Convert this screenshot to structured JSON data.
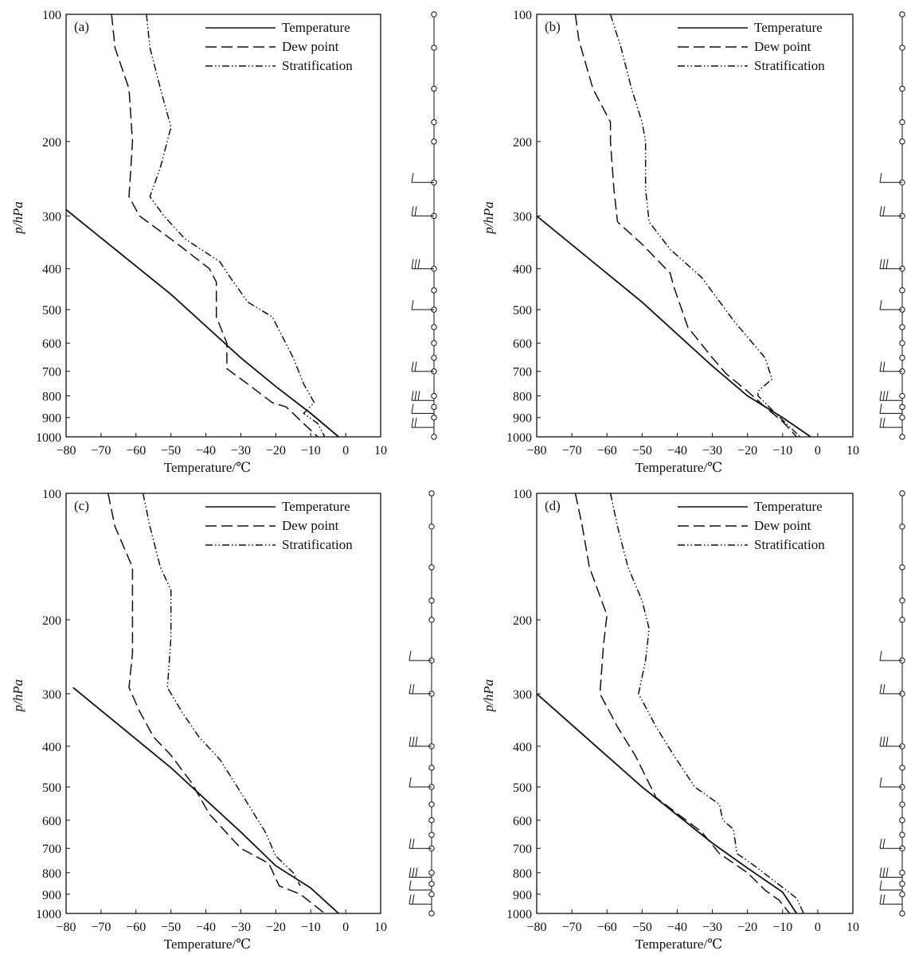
{
  "chart_data": [
    {
      "type": "line",
      "panel_label": "(a)",
      "xlabel": "Temperature/℃",
      "ylabel": "p/hPa",
      "xlim": [
        -80,
        10
      ],
      "ylim": [
        1000,
        100
      ],
      "y_scale": "log",
      "x_ticks": [
        "−80",
        "−70",
        "−60",
        "−50",
        "−40",
        "−30",
        "−20",
        "−10",
        "0",
        "10"
      ],
      "y_ticks": [
        "100",
        "200",
        "300",
        "400",
        "500",
        "600",
        "700",
        "800",
        "900",
        "1000"
      ],
      "legend_position": "top-right",
      "series": [
        {
          "name": "Temperature",
          "dash": "solid",
          "points": [
            [
              -80,
              290
            ],
            [
              -50,
              460
            ],
            [
              -30,
              650
            ],
            [
              -20,
              760
            ],
            [
              -10,
              880
            ],
            [
              -2,
              1000
            ]
          ]
        },
        {
          "name": "Dew point",
          "dash": "dashed",
          "points": [
            [
              -67,
              100
            ],
            [
              -66,
              120
            ],
            [
              -62,
              150
            ],
            [
              -61,
              200
            ],
            [
              -62,
              270
            ],
            [
              -59,
              300
            ],
            [
              -48,
              350
            ],
            [
              -39,
              400
            ],
            [
              -37,
              430
            ],
            [
              -37,
              520
            ],
            [
              -34,
              600
            ],
            [
              -34,
              690
            ],
            [
              -28,
              750
            ],
            [
              -21,
              830
            ],
            [
              -17,
              850
            ],
            [
              -12,
              930
            ],
            [
              -8,
              1000
            ]
          ]
        },
        {
          "name": "Stratification",
          "dash": "dash-dot-dot",
          "points": [
            [
              -57,
              100
            ],
            [
              -56,
              120
            ],
            [
              -53,
              150
            ],
            [
              -50,
              185
            ],
            [
              -53,
              230
            ],
            [
              -56,
              270
            ],
            [
              -52,
              300
            ],
            [
              -46,
              340
            ],
            [
              -36,
              385
            ],
            [
              -33,
              420
            ],
            [
              -28,
              480
            ],
            [
              -21,
              520
            ],
            [
              -15,
              650
            ],
            [
              -12,
              750
            ],
            [
              -9,
              830
            ],
            [
              -12,
              880
            ],
            [
              -8,
              930
            ],
            [
              -6,
              1000
            ]
          ]
        }
      ]
    },
    {
      "type": "line",
      "panel_label": "(b)",
      "xlabel": "Temperature/℃",
      "ylabel": "p/hPa",
      "xlim": [
        -80,
        10
      ],
      "ylim": [
        1000,
        100
      ],
      "y_scale": "log",
      "x_ticks": [
        "−80",
        "−70",
        "−60",
        "−50",
        "−40",
        "−30",
        "−20",
        "−10",
        "0",
        "10"
      ],
      "y_ticks": [
        "100",
        "200",
        "300",
        "400",
        "500",
        "600",
        "700",
        "800",
        "900",
        "1000"
      ],
      "legend_position": "top-right",
      "series": [
        {
          "name": "Temperature",
          "dash": "solid",
          "points": [
            [
              -80,
              300
            ],
            [
              -50,
              480
            ],
            [
              -30,
              680
            ],
            [
              -20,
              800
            ],
            [
              -10,
              900
            ],
            [
              -2,
              1000
            ]
          ]
        },
        {
          "name": "Dew point",
          "dash": "dashed",
          "points": [
            [
              -69,
              100
            ],
            [
              -68,
              115
            ],
            [
              -64,
              150
            ],
            [
              -59,
              180
            ],
            [
              -59,
              200
            ],
            [
              -58,
              260
            ],
            [
              -57,
              310
            ],
            [
              -50,
              350
            ],
            [
              -42,
              410
            ],
            [
              -41,
              440
            ],
            [
              -37,
              550
            ],
            [
              -30,
              650
            ],
            [
              -26,
              710
            ],
            [
              -20,
              780
            ],
            [
              -15,
              850
            ],
            [
              -10,
              920
            ],
            [
              -6,
              1000
            ]
          ]
        },
        {
          "name": "Stratification",
          "dash": "dash-dot-dot",
          "points": [
            [
              -59,
              100
            ],
            [
              -56,
              120
            ],
            [
              -53,
              150
            ],
            [
              -50,
              180
            ],
            [
              -49,
              200
            ],
            [
              -49,
              260
            ],
            [
              -48,
              310
            ],
            [
              -42,
              360
            ],
            [
              -33,
              420
            ],
            [
              -24,
              530
            ],
            [
              -15,
              650
            ],
            [
              -13,
              730
            ],
            [
              -17,
              780
            ],
            [
              -17,
              800
            ],
            [
              -12,
              880
            ],
            [
              -5,
              1000
            ]
          ]
        }
      ]
    },
    {
      "type": "line",
      "panel_label": "(c)",
      "xlabel": "Temperature/℃",
      "ylabel": "p/hPa",
      "xlim": [
        -80,
        10
      ],
      "ylim": [
        1000,
        100
      ],
      "y_scale": "log",
      "x_ticks": [
        "−80",
        "−70",
        "−60",
        "−50",
        "−40",
        "−30",
        "−20",
        "−10",
        "0",
        "10"
      ],
      "y_ticks": [
        "100",
        "200",
        "300",
        "400",
        "500",
        "600",
        "700",
        "800",
        "900",
        "1000"
      ],
      "legend_position": "top-right",
      "series": [
        {
          "name": "Temperature",
          "dash": "solid",
          "points": [
            [
              -78,
              290
            ],
            [
              -50,
              450
            ],
            [
              -30,
              640
            ],
            [
              -20,
              770
            ],
            [
              -10,
              870
            ],
            [
              -2,
              1000
            ]
          ]
        },
        {
          "name": "Dew point",
          "dash": "dashed",
          "points": [
            [
              -68,
              100
            ],
            [
              -66,
              120
            ],
            [
              -61,
              150
            ],
            [
              -61,
              180
            ],
            [
              -61,
              240
            ],
            [
              -62,
              290
            ],
            [
              -59,
              330
            ],
            [
              -55,
              380
            ],
            [
              -50,
              420
            ],
            [
              -44,
              490
            ],
            [
              -39,
              580
            ],
            [
              -30,
              700
            ],
            [
              -22,
              760
            ],
            [
              -19,
              860
            ],
            [
              -13,
              900
            ],
            [
              -6,
              1000
            ]
          ]
        },
        {
          "name": "Stratification",
          "dash": "dash-dot-dot",
          "points": [
            [
              -58,
              100
            ],
            [
              -56,
              120
            ],
            [
              -53,
              150
            ],
            [
              -50,
              170
            ],
            [
              -50,
              220
            ],
            [
              -51,
              290
            ],
            [
              -47,
              330
            ],
            [
              -42,
              380
            ],
            [
              -36,
              430
            ],
            [
              -31,
              500
            ],
            [
              -23,
              640
            ],
            [
              -20,
              730
            ],
            [
              -15,
              800
            ],
            [
              -13,
              860
            ]
          ]
        }
      ]
    },
    {
      "type": "line",
      "panel_label": "(d)",
      "xlabel": "Temperature/℃",
      "ylabel": "p/hPa",
      "xlim": [
        -80,
        10
      ],
      "ylim": [
        1000,
        100
      ],
      "y_scale": "log",
      "x_ticks": [
        "−80",
        "−70",
        "−60",
        "−50",
        "−40",
        "−30",
        "−20",
        "−10",
        "0",
        "10"
      ],
      "y_ticks": [
        "100",
        "200",
        "300",
        "400",
        "500",
        "600",
        "700",
        "800",
        "900",
        "1000"
      ],
      "legend_position": "top-right",
      "series": [
        {
          "name": "Temperature",
          "dash": "solid",
          "points": [
            [
              -80,
              300
            ],
            [
              -50,
              500
            ],
            [
              -30,
              680
            ],
            [
              -20,
              780
            ],
            [
              -10,
              890
            ],
            [
              -6,
              1000
            ]
          ]
        },
        {
          "name": "Dew point",
          "dash": "dashed",
          "points": [
            [
              -69,
              100
            ],
            [
              -67,
              120
            ],
            [
              -65,
              150
            ],
            [
              -60,
              195
            ],
            [
              -61,
              230
            ],
            [
              -62,
              300
            ],
            [
              -57,
              360
            ],
            [
              -52,
              420
            ],
            [
              -46,
              530
            ],
            [
              -33,
              640
            ],
            [
              -28,
              720
            ],
            [
              -20,
              800
            ],
            [
              -15,
              880
            ],
            [
              -11,
              930
            ],
            [
              -8,
              1000
            ]
          ]
        },
        {
          "name": "Stratification",
          "dash": "dash-dot-dot",
          "points": [
            [
              -59,
              100
            ],
            [
              -57,
              120
            ],
            [
              -54,
              150
            ],
            [
              -50,
              180
            ],
            [
              -48,
              210
            ],
            [
              -49,
              250
            ],
            [
              -51,
              300
            ],
            [
              -46,
              360
            ],
            [
              -41,
              420
            ],
            [
              -35,
              500
            ],
            [
              -28,
              550
            ],
            [
              -27,
              600
            ],
            [
              -24,
              630
            ],
            [
              -23,
              720
            ],
            [
              -18,
              770
            ],
            [
              -6,
              920
            ],
            [
              -4,
              1000
            ]
          ]
        }
      ]
    }
  ]
}
